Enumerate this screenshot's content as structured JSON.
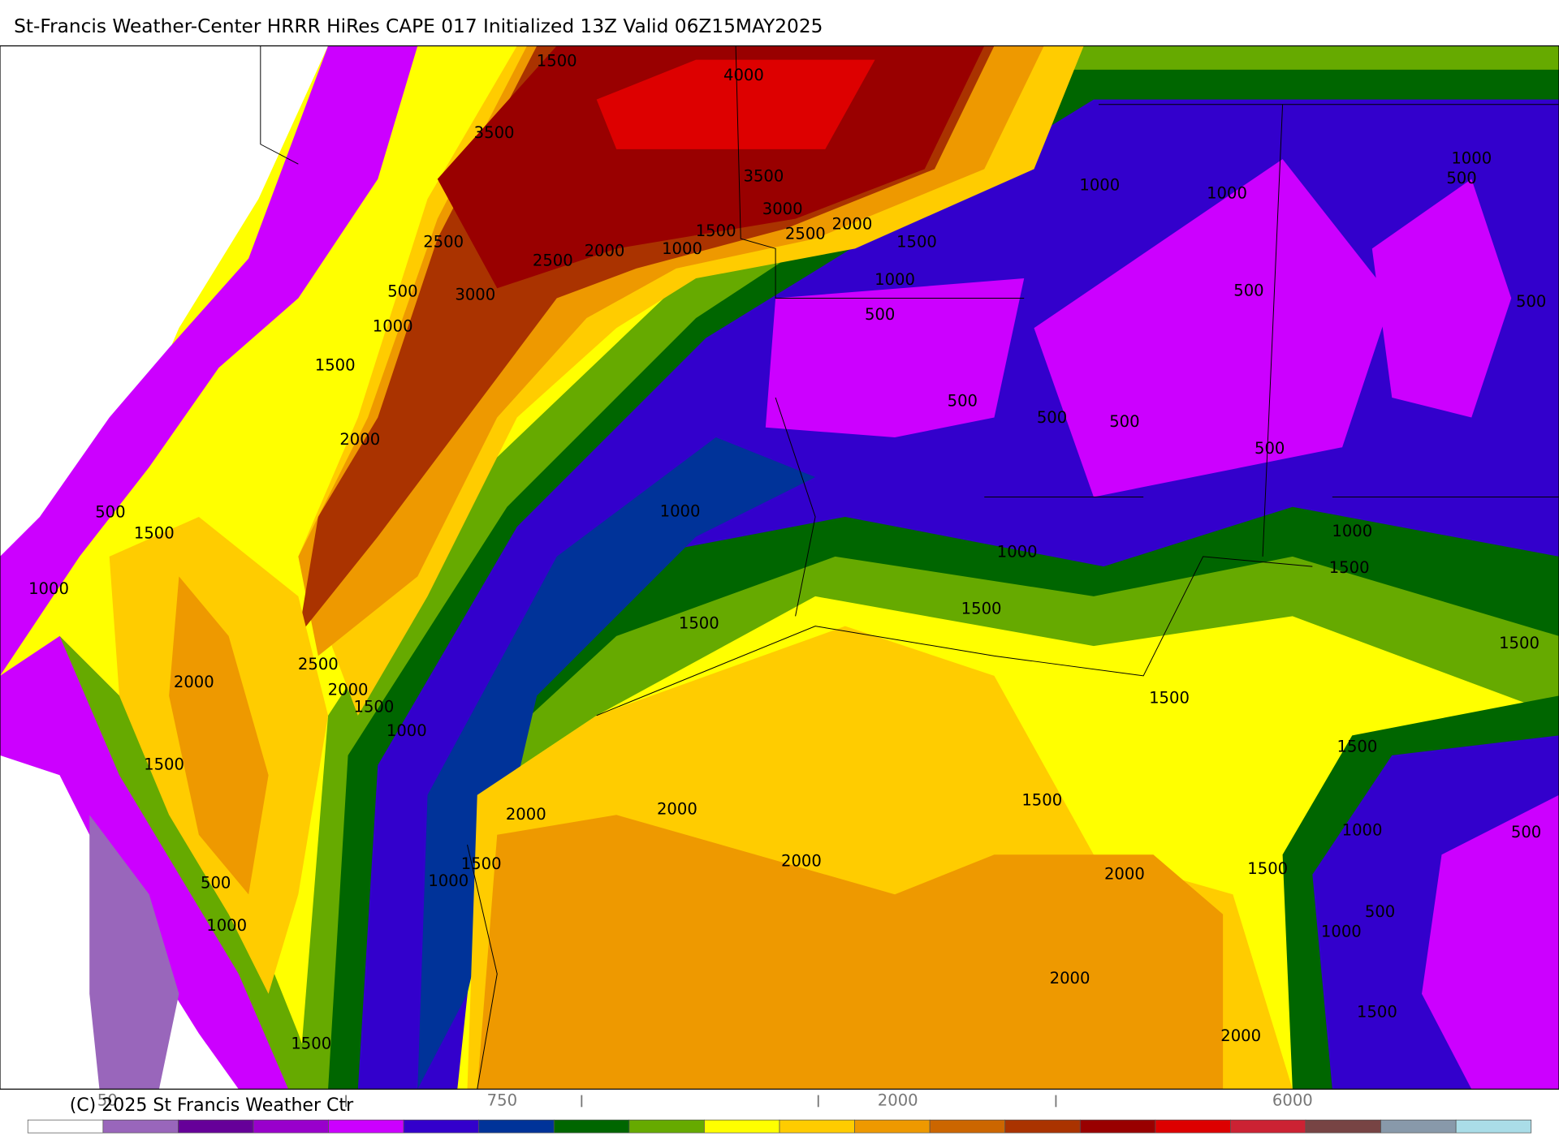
{
  "header": {
    "title": "St-Francis Weather-Center HRRR HiRes CAPE  017 Initialized  13Z Valid 06Z15MAY2025"
  },
  "map": {
    "contour_labels": [
      "1500",
      "4000",
      "3500",
      "3500",
      "3000",
      "2500",
      "2000",
      "1500",
      "1000",
      "2000",
      "2500",
      "2500",
      "3000",
      "500",
      "1000",
      "1500",
      "2000",
      "1000",
      "1000",
      "1000",
      "500",
      "1500",
      "1000",
      "500",
      "500",
      "500",
      "500",
      "500",
      "500",
      "500",
      "1000",
      "1000",
      "1000",
      "1500",
      "500",
      "1500",
      "1000",
      "1500",
      "1500",
      "1500",
      "2500",
      "2000",
      "1500",
      "1000",
      "2000",
      "1500",
      "1500",
      "1500",
      "2000",
      "2000",
      "1500",
      "1000",
      "500",
      "2000",
      "1500",
      "1000",
      "2000",
      "1500",
      "500",
      "1000",
      "500",
      "1000",
      "2000",
      "1500",
      "2000",
      "1500"
    ]
  },
  "colorbar": {
    "colors": [
      "#ffffff",
      "#9966bb",
      "#660099",
      "#9900cc",
      "#cc00ff",
      "#3300cc",
      "#003399",
      "#006600",
      "#66aa00",
      "#ffff00",
      "#ffcc00",
      "#ee9900",
      "#cc6600",
      "#aa3300",
      "#990000",
      "#dd0000",
      "#cc2233",
      "#774444",
      "#8899aa",
      "#aadde8"
    ],
    "labels": [
      "50",
      "750",
      "2000",
      "6000"
    ]
  },
  "footer": {
    "copyright": "(C) 2025 St Francis Weather Ctr"
  }
}
